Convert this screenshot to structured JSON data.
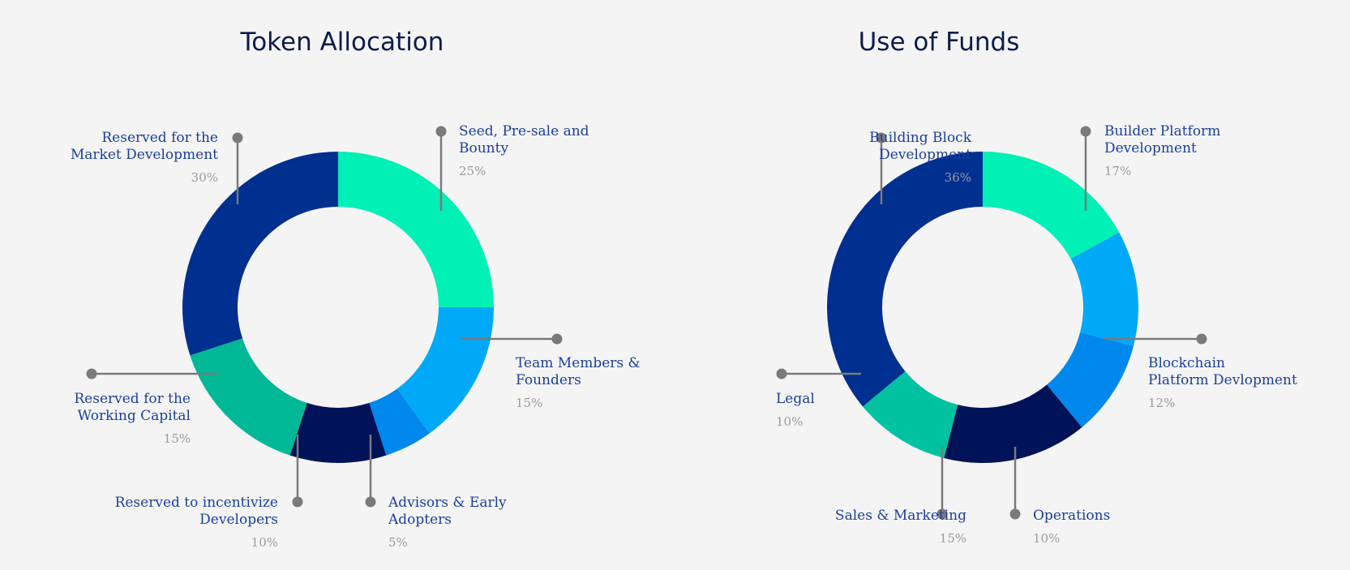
{
  "chart_data": [
    {
      "type": "pie",
      "title": "Token Allocation",
      "donut": true,
      "slices": [
        {
          "label": "Seed, Pre-sale and Bounty",
          "value": 25,
          "pct_label": "25%",
          "color": "#00f0b5"
        },
        {
          "label": "Team Members & Founders",
          "value": 15,
          "pct_label": "15%",
          "color": "#00a9f7"
        },
        {
          "label": "Advisors & Early Adopters",
          "value": 5,
          "pct_label": "5%",
          "color": "#0088ec"
        },
        {
          "label": "Reserved to incentivize Developers",
          "value": 10,
          "pct_label": "10%",
          "color": "#001258"
        },
        {
          "label": "Reserved for the Working Capital",
          "value": 15,
          "pct_label": "15%",
          "color": "#00b896"
        },
        {
          "label": "Reserved for the Market Development",
          "value": 30,
          "pct_label": "30%",
          "color": "#00308f"
        }
      ]
    },
    {
      "type": "pie",
      "title": "Use of Funds",
      "donut": true,
      "slices": [
        {
          "label": "Builder Platform Development",
          "value": 17,
          "pct_label": "17%",
          "color": "#00f0b5"
        },
        {
          "label": "Blockchain Platform Devlopment",
          "value": 12,
          "pct_label": "12%",
          "color": "#00a9f7"
        },
        {
          "label": "Operations",
          "value": 10,
          "pct_label": "10%",
          "color": "#0088ec"
        },
        {
          "label": "Sales & Marketing",
          "value": 15,
          "pct_label": "15%",
          "color": "#001258"
        },
        {
          "label": "Legal",
          "value": 10,
          "pct_label": "10%",
          "color": "#00c2a0"
        },
        {
          "label": "Building Block Development",
          "value": 36,
          "pct_label": "36%",
          "color": "#00308f"
        }
      ]
    }
  ],
  "leader_color": "#7a7a7a",
  "labels": {
    "left": [
      {
        "l1": "Seed, Pre-sale and",
        "l2": "Bounty",
        "pct": "25%"
      },
      {
        "l1": "Team Members &",
        "l2": "Founders",
        "pct": "15%"
      },
      {
        "l1": "Advisors & Early",
        "l2": "Adopters",
        "pct": "5%"
      },
      {
        "l1": "Reserved to incentivize",
        "l2": "Developers",
        "pct": "10%"
      },
      {
        "l1": "Reserved for the",
        "l2": "Working Capital",
        "pct": "15%"
      },
      {
        "l1": "Reserved for the",
        "l2": "Market Development",
        "pct": "30%"
      }
    ],
    "right": [
      {
        "l1": "Builder Platform",
        "l2": "Development",
        "pct": "17%"
      },
      {
        "l1": "Blockchain",
        "l2": "Platform Devlopment",
        "pct": "12%"
      },
      {
        "l1": "Operations",
        "pct": "10%"
      },
      {
        "l1": "Sales & Marketing",
        "pct": "15%"
      },
      {
        "l1": "Legal",
        "pct": "10%"
      },
      {
        "l1": "Building Block",
        "l2": "Development",
        "pct": "36%"
      }
    ]
  }
}
